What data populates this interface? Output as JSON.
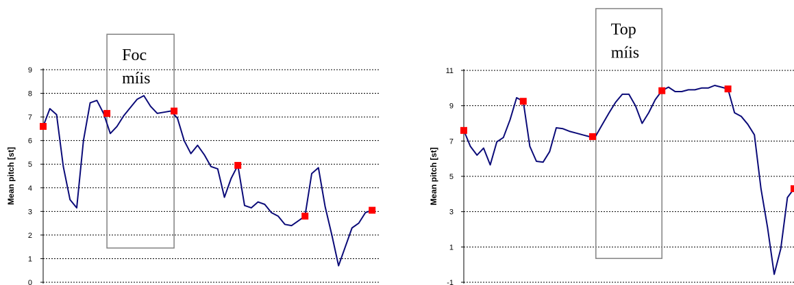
{
  "chart_data": [
    {
      "type": "line",
      "ylabel": "Mean pitch [st]",
      "ylim": [
        0,
        9
      ],
      "yticks": [
        "0",
        "1",
        "2",
        "3",
        "4",
        "5",
        "6",
        "7",
        "8",
        "9"
      ],
      "grid": true,
      "xlim": [
        0,
        100
      ],
      "box_label": [
        "Foc",
        "míis"
      ],
      "box_range": {
        "x": [
          19,
          39
        ],
        "y": [
          1.45,
          10.5
        ]
      },
      "series": [
        {
          "color": "#0a0a78",
          "points": [
            [
              0,
              6.6
            ],
            [
              2,
              7.35
            ],
            [
              4,
              7.1
            ],
            [
              6,
              4.9
            ],
            [
              8,
              3.5
            ],
            [
              10,
              3.15
            ],
            [
              12,
              6.0
            ],
            [
              14,
              7.6
            ],
            [
              16,
              7.7
            ],
            [
              18,
              7.15
            ],
            [
              20,
              6.3
            ],
            [
              22,
              6.6
            ],
            [
              24,
              7.05
            ],
            [
              26,
              7.4
            ],
            [
              28,
              7.75
            ],
            [
              30,
              7.9
            ],
            [
              32,
              7.45
            ],
            [
              34,
              7.15
            ],
            [
              36,
              7.2
            ],
            [
              38,
              7.25
            ],
            [
              40,
              6.95
            ],
            [
              42,
              6.0
            ],
            [
              44,
              5.45
            ],
            [
              46,
              5.8
            ],
            [
              48,
              5.4
            ],
            [
              50,
              4.9
            ],
            [
              52,
              4.8
            ],
            [
              54,
              3.6
            ],
            [
              56,
              4.4
            ],
            [
              58,
              4.95
            ],
            [
              60,
              3.25
            ],
            [
              62,
              3.15
            ],
            [
              64,
              3.4
            ],
            [
              66,
              3.3
            ],
            [
              68,
              2.95
            ],
            [
              70,
              2.8
            ],
            [
              72,
              2.45
            ],
            [
              74,
              2.4
            ],
            [
              76,
              2.6
            ],
            [
              78,
              2.8
            ],
            [
              80,
              4.6
            ],
            [
              82,
              4.85
            ],
            [
              84,
              3.2
            ],
            [
              86,
              2.0
            ],
            [
              88,
              0.7
            ],
            [
              90,
              1.5
            ],
            [
              92,
              2.3
            ],
            [
              94,
              2.5
            ],
            [
              96,
              2.95
            ],
            [
              98,
              3.05
            ]
          ]
        }
      ],
      "markers": {
        "color": "#ff0000",
        "points": [
          [
            0,
            6.6
          ],
          [
            19,
            7.15
          ],
          [
            39,
            7.25
          ],
          [
            58,
            4.95
          ],
          [
            78,
            2.8
          ],
          [
            98,
            3.05
          ]
        ]
      }
    },
    {
      "type": "line",
      "ylabel": "Mean pitch [st]",
      "ylim": [
        -1,
        11
      ],
      "yticks": [
        "-1",
        "1",
        "3",
        "5",
        "7",
        "9",
        "11"
      ],
      "grid": true,
      "xlim": [
        0,
        100
      ],
      "box_label": [
        "Top",
        "míis"
      ],
      "box_range": {
        "x": [
          40,
          60
        ],
        "y": [
          0.35,
          14.5
        ]
      },
      "series": [
        {
          "color": "#0a0a78",
          "points": [
            [
              0,
              7.6
            ],
            [
              2,
              6.7
            ],
            [
              4,
              6.2
            ],
            [
              6,
              6.6
            ],
            [
              8,
              5.65
            ],
            [
              10,
              6.95
            ],
            [
              12,
              7.2
            ],
            [
              14,
              8.2
            ],
            [
              16,
              9.45
            ],
            [
              18,
              9.25
            ],
            [
              20,
              6.7
            ],
            [
              22,
              5.85
            ],
            [
              24,
              5.8
            ],
            [
              26,
              6.4
            ],
            [
              28,
              7.75
            ],
            [
              30,
              7.7
            ],
            [
              32,
              7.55
            ],
            [
              34,
              7.45
            ],
            [
              36,
              7.35
            ],
            [
              38,
              7.25
            ],
            [
              40,
              7.3
            ],
            [
              42,
              7.95
            ],
            [
              44,
              8.6
            ],
            [
              46,
              9.2
            ],
            [
              48,
              9.65
            ],
            [
              50,
              9.65
            ],
            [
              52,
              9.0
            ],
            [
              54,
              8.0
            ],
            [
              56,
              8.6
            ],
            [
              58,
              9.35
            ],
            [
              60,
              9.85
            ],
            [
              62,
              10.05
            ],
            [
              64,
              9.8
            ],
            [
              66,
              9.8
            ],
            [
              68,
              9.9
            ],
            [
              70,
              9.9
            ],
            [
              72,
              10.0
            ],
            [
              74,
              10.0
            ],
            [
              76,
              10.15
            ],
            [
              78,
              10.05
            ],
            [
              80,
              9.95
            ],
            [
              82,
              8.6
            ],
            [
              84,
              8.4
            ],
            [
              86,
              7.95
            ],
            [
              88,
              7.35
            ],
            [
              90,
              4.3
            ],
            [
              92,
              2.1
            ],
            [
              94,
              -0.55
            ],
            [
              96,
              0.9
            ],
            [
              98,
              3.8
            ],
            [
              100,
              4.3
            ]
          ]
        }
      ],
      "markers": {
        "color": "#ff0000",
        "points": [
          [
            0,
            7.6
          ],
          [
            18,
            9.25
          ],
          [
            39,
            7.25
          ],
          [
            60,
            9.85
          ],
          [
            80,
            9.95
          ],
          [
            100,
            4.3
          ]
        ]
      }
    }
  ]
}
